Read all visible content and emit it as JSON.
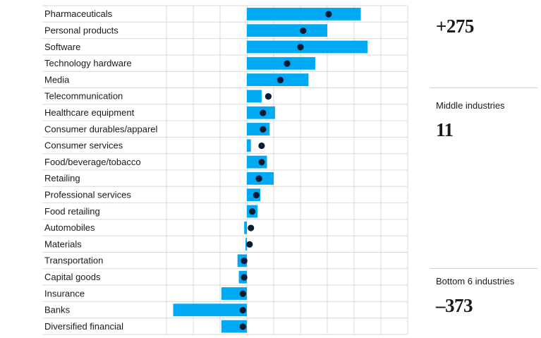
{
  "chart_data": {
    "type": "bar",
    "categories": [
      "Pharmaceuticals",
      "Personal products",
      "Software",
      "Technology hardware",
      "Media",
      "Telecommunication",
      "Healthcare equipment",
      "Consumer durables/apparel",
      "Consumer services",
      "Food/beverage/tobacco",
      "Retailing",
      "Professional services",
      "Food retailing",
      "Automobiles",
      "Materials",
      "Transportation",
      "Capital goods",
      "Insurance",
      "Banks",
      "Diversified financial"
    ],
    "series": [
      {
        "values": [
          85,
          60,
          90,
          51,
          46,
          11,
          21,
          17,
          3,
          15,
          20,
          10,
          8,
          -2,
          -1,
          -7,
          -6,
          -19,
          -55,
          -19
        ]
      },
      {
        "values": [
          61,
          42,
          40,
          30,
          25,
          16,
          12,
          12,
          11,
          11,
          9,
          7,
          4,
          3,
          2,
          -2,
          -2,
          -3,
          -3,
          -3
        ]
      }
    ],
    "xlim": [
      -60,
      120
    ],
    "grid": true,
    "colors": {
      "bar": "#00a9f4",
      "dot": "#0b1b33",
      "grid": "#d9d9d9"
    }
  },
  "sidebar": {
    "top_value": "+275",
    "middle_label": "Middle industries",
    "middle_value": "11",
    "bottom_label": "Bottom 6 industries",
    "bottom_value": "–373"
  }
}
